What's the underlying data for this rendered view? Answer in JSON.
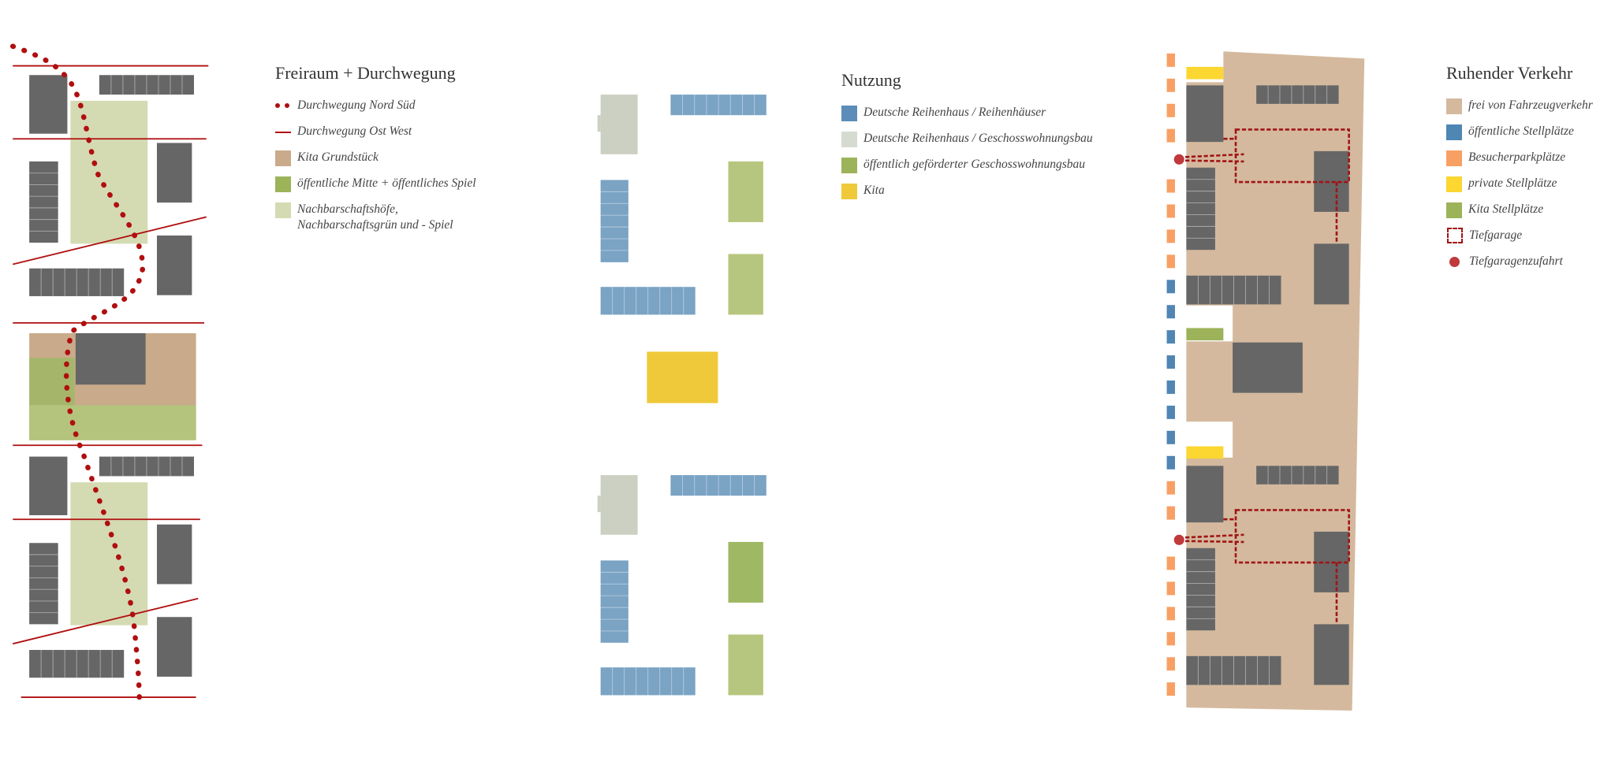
{
  "freiraum": {
    "title": "Freiraum + Durchwegung",
    "items": [
      {
        "label": "Durchwegung Nord Süd",
        "symbol": "dotted-line",
        "color": "#b00f0f"
      },
      {
        "label": "Durchwegung Ost West",
        "symbol": "line",
        "color": "#b00f0f"
      },
      {
        "label": "Kita Grundstück",
        "symbol": "swatch",
        "color": "#c9aa8a"
      },
      {
        "label": "öffentliche Mitte + öffentliches Spiel",
        "symbol": "swatch",
        "color": "#9cb35a"
      },
      {
        "label": "Nachbarschaftshöfe,",
        "label2": "Nachbarschaftsgrün und - Spiel",
        "symbol": "swatch",
        "color": "#d4dbb3"
      }
    ]
  },
  "nutzung": {
    "title": "Nutzung",
    "items": [
      {
        "label": "Deutsche Reihenhaus / Reihenhäuser",
        "color": "#5b8db8"
      },
      {
        "label": "Deutsche Reihenhaus / Geschosswohnungsbau",
        "color": "#d5dbd0"
      },
      {
        "label": "öffentlich geförderter Geschosswohnungsbau",
        "color": "#9cb35a"
      },
      {
        "label": "Kita",
        "color": "#efc93a"
      }
    ]
  },
  "verkehr": {
    "title": "Ruhender Verkehr",
    "items": [
      {
        "label": "frei von Fahrzeugverkehr",
        "symbol": "swatch",
        "color": "#d4b99e"
      },
      {
        "label": "öffentliche Stellplätze",
        "symbol": "swatch",
        "color": "#4f86b3"
      },
      {
        "label": "Besucherparkplätze",
        "symbol": "swatch",
        "color": "#f8a064"
      },
      {
        "label": "private Stellplätze",
        "symbol": "swatch",
        "color": "#fcd631"
      },
      {
        "label": "Kita Stellplätze",
        "symbol": "swatch",
        "color": "#9cb35a"
      },
      {
        "label": "Tiefgarage",
        "symbol": "dashed-square",
        "color": "#a01515"
      },
      {
        "label": "Tiefgaragenzufahrt",
        "symbol": "circle",
        "color": "#c0393b"
      }
    ]
  }
}
